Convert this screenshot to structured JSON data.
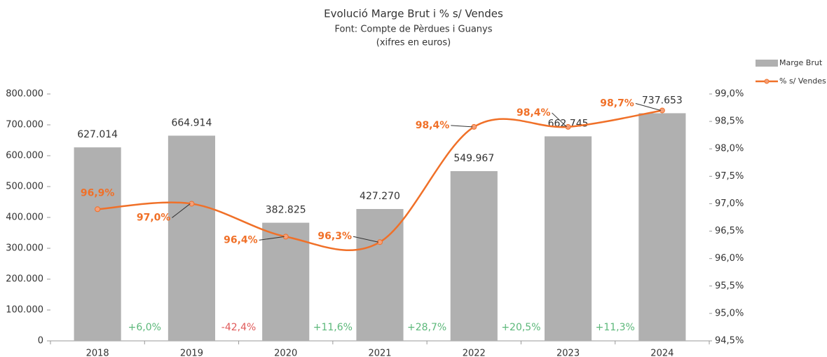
{
  "chart_data": {
    "type": "bar_line",
    "title": "Evolució Marge Brut i % s/ Vendes",
    "subtitle": [
      "Font: Compte de Pèrdues i Guanys",
      "(xifres en euros)"
    ],
    "categories": [
      "2018",
      "2019",
      "2020",
      "2021",
      "2022",
      "2023",
      "2024"
    ],
    "series": [
      {
        "name": "Marge Brut",
        "type": "bar",
        "color": "#b0b0b0",
        "values": [
          627014,
          664914,
          382825,
          427270,
          549967,
          662745,
          737653
        ],
        "value_labels": [
          "627.014",
          "664.914",
          "382.825",
          "427.270",
          "549.967",
          "662.745",
          "737.653"
        ]
      },
      {
        "name": "% s/ Vendes",
        "type": "line",
        "axis": "y2",
        "color": "#f07028",
        "values": [
          96.9,
          97.0,
          96.4,
          96.3,
          98.4,
          98.4,
          98.7
        ],
        "value_labels": [
          "96,9%",
          "97,0%",
          "96,4%",
          "96,3%",
          "98,4%",
          "98,4%",
          "98,7%"
        ]
      }
    ],
    "annotations": [
      {
        "text": "+6,0%",
        "color": "#5cb87a"
      },
      {
        "text": "-42,4%",
        "color": "#e05a5a"
      },
      {
        "text": "+11,6%",
        "color": "#5cb87a"
      },
      {
        "text": "+28,7%",
        "color": "#5cb87a"
      },
      {
        "text": "+20,5%",
        "color": "#5cb87a"
      },
      {
        "text": "+11,3%",
        "color": "#5cb87a"
      }
    ],
    "ylim": [
      0,
      800000
    ],
    "yticks": [
      0,
      {
        "value": 100000,
        "label": "100.000"
      },
      {
        "value": 200000,
        "label": "200.000"
      },
      {
        "value": 300000,
        "label": "300.000"
      },
      {
        "value": 400000,
        "label": "400.000"
      },
      {
        "value": 500000,
        "label": "500.000"
      },
      {
        "value": 600000,
        "label": "600.000"
      },
      {
        "value": 700000,
        "label": "700.000"
      },
      {
        "value": 800000,
        "label": "800.000"
      }
    ],
    "y2lim": [
      94.5,
      99.0
    ],
    "y2ticks": [
      {
        "value": 94.5,
        "label": "94,5%"
      },
      {
        "value": 95.0,
        "label": "95,0%"
      },
      {
        "value": 95.5,
        "label": "95,5%"
      },
      {
        "value": 96.0,
        "label": "96,0%"
      },
      {
        "value": 96.5,
        "label": "96,5%"
      },
      {
        "value": 97.0,
        "label": "97,0%"
      },
      {
        "value": 97.5,
        "label": "97,5%"
      },
      {
        "value": 98.0,
        "label": "98,0%"
      },
      {
        "value": 98.5,
        "label": "98,5%"
      },
      {
        "value": 99.0,
        "label": "99,0%"
      }
    ],
    "legend": "top-right",
    "grid": false
  }
}
